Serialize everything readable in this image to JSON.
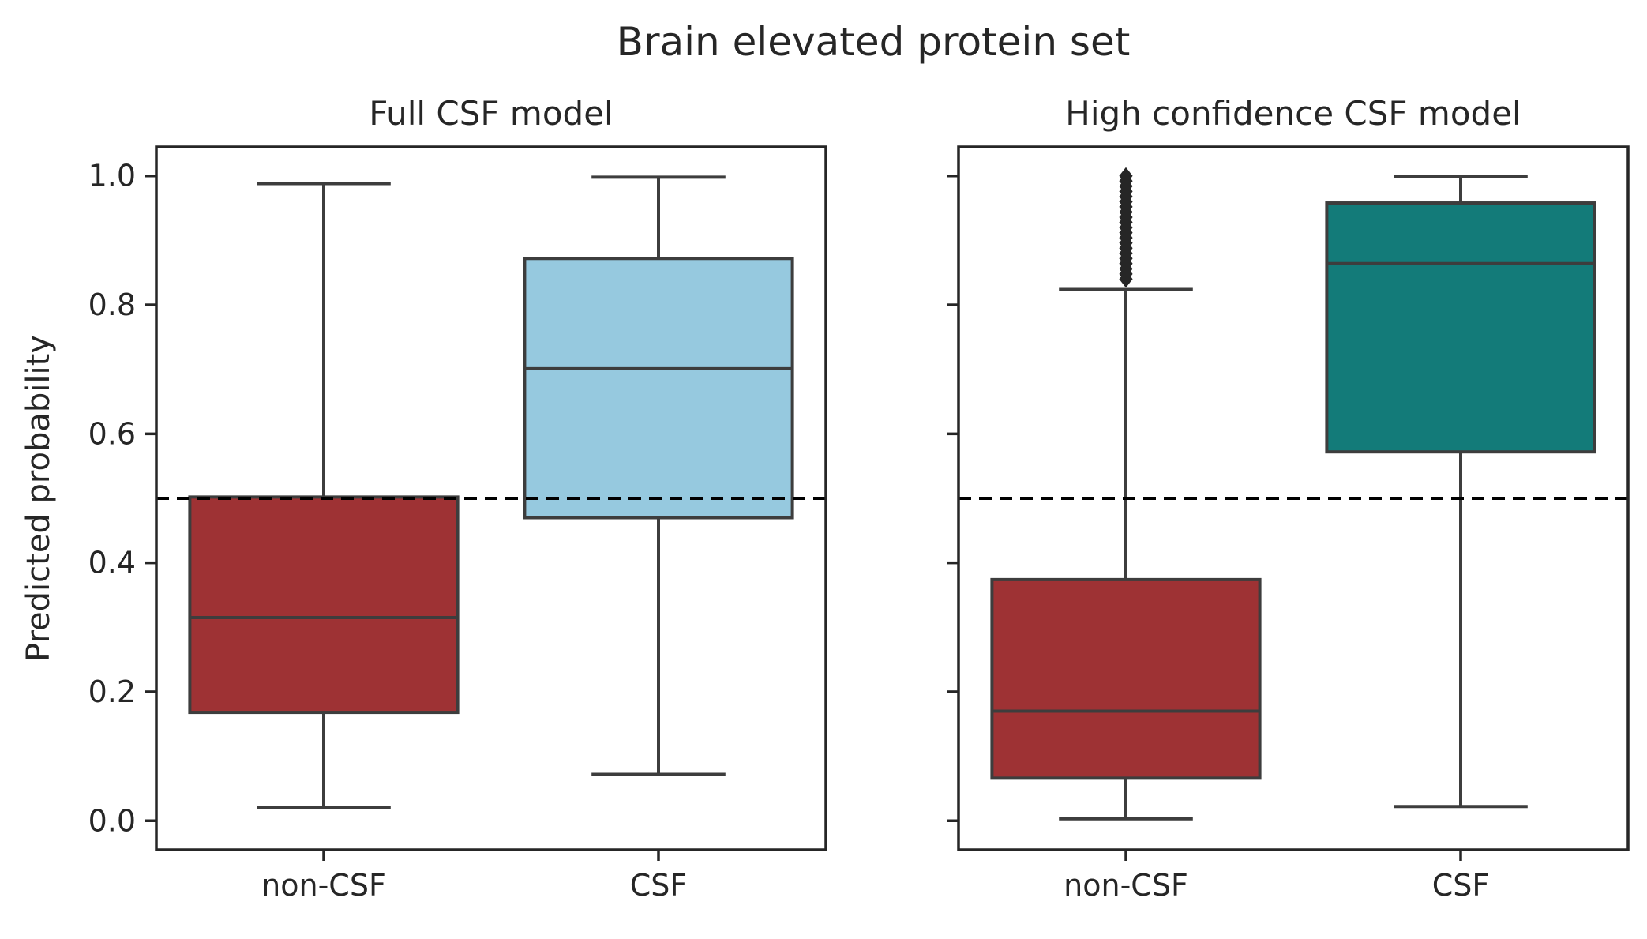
{
  "suptitle": "Brain elevated protein set",
  "colors": {
    "noncsf_fill": "#9e3234",
    "csf_full_fill": "#96c9df",
    "csf_hc_fill": "#137b79",
    "line": "#3d3d3d",
    "axes": "#262626",
    "threshold": "#000000"
  },
  "chart_data": [
    {
      "type": "box",
      "title": "Full CSF model",
      "xlabel": "",
      "ylabel": "Predicted probability",
      "ylim": [
        -0.045,
        1.045
      ],
      "yticks": [
        "0.0",
        "0.2",
        "0.4",
        "0.6",
        "0.8",
        "1.0"
      ],
      "categories": [
        "non-CSF",
        "CSF"
      ],
      "threshold": 0.5,
      "boxes": [
        {
          "category": "non-CSF",
          "whisker_low": 0.02,
          "q1": 0.168,
          "median": 0.315,
          "q3": 0.502,
          "whisker_high": 0.988,
          "fill": "#9e3234",
          "outliers": []
        },
        {
          "category": "CSF",
          "whisker_low": 0.072,
          "q1": 0.47,
          "median": 0.701,
          "q3": 0.872,
          "whisker_high": 0.998,
          "fill": "#96c9df",
          "outliers": []
        }
      ]
    },
    {
      "type": "box",
      "title": "High confidence CSF model",
      "xlabel": "",
      "ylabel": "",
      "ylim": [
        -0.045,
        1.045
      ],
      "yticks": [
        "0.0",
        "0.2",
        "0.4",
        "0.6",
        "0.8",
        "1.0"
      ],
      "categories": [
        "non-CSF",
        "CSF"
      ],
      "threshold": 0.5,
      "boxes": [
        {
          "category": "non-CSF",
          "whisker_low": 0.003,
          "q1": 0.066,
          "median": 0.17,
          "q3": 0.374,
          "whisker_high": 0.824,
          "fill": "#9e3234",
          "outliers": [
            0.84,
            0.848,
            0.856,
            0.864,
            0.872,
            0.88,
            0.888,
            0.896,
            0.904,
            0.912,
            0.92,
            0.928,
            0.936,
            0.944,
            0.952,
            0.96,
            0.968,
            0.976,
            0.984,
            0.992,
            1.0
          ]
        },
        {
          "category": "CSF",
          "whisker_low": 0.022,
          "q1": 0.572,
          "median": 0.864,
          "q3": 0.958,
          "whisker_high": 0.999,
          "fill": "#137b79",
          "outliers": []
        }
      ]
    }
  ]
}
